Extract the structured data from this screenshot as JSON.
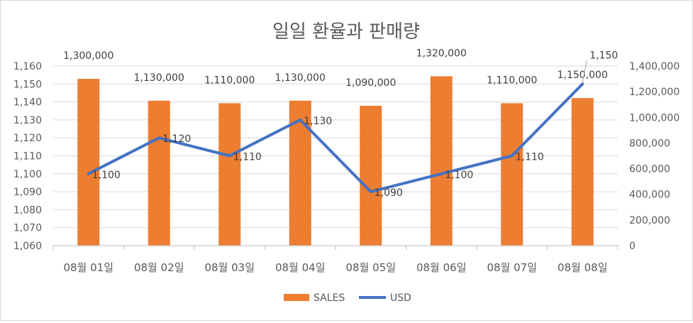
{
  "chart_data": {
    "type": "bar+line",
    "title": "일일 환율과 판매량",
    "categories": [
      "08월 01일",
      "08월 02일",
      "08월 03일",
      "08월 04일",
      "08월 05일",
      "08월 06일",
      "08월 07일",
      "08월 08일"
    ],
    "series": [
      {
        "name": "SALES",
        "type": "bar",
        "axis": "right",
        "color": "#ED7D31",
        "values": [
          1300000,
          1130000,
          1110000,
          1130000,
          1090000,
          1320000,
          1110000,
          1150000
        ],
        "labels": [
          "1,300,000",
          "1,130,000",
          "1,110,000",
          "1,130,000",
          "1,090,000",
          "1,320,000",
          "1,110,000",
          "1,150,000"
        ]
      },
      {
        "name": "USD",
        "type": "line",
        "axis": "left",
        "color": "#4472C4",
        "values": [
          1100,
          1120,
          1110,
          1130,
          1090,
          1100,
          1110,
          1150
        ],
        "labels": [
          "1,100",
          "1,120",
          "1,110",
          "1,130",
          "1,090",
          "1,100",
          "1,110",
          "1,150"
        ]
      }
    ],
    "y_left": {
      "min": 1060,
      "max": 1160,
      "step": 10,
      "tick_labels": [
        "1,060",
        "1,070",
        "1,080",
        "1,090",
        "1,100",
        "1,110",
        "1,120",
        "1,130",
        "1,140",
        "1,150",
        "1,160"
      ]
    },
    "y_right": {
      "min": 0,
      "max": 1400000,
      "step": 200000,
      "tick_labels": [
        "0",
        "200,000",
        "400,000",
        "600,000",
        "800,000",
        "1,000,000",
        "1,200,000",
        "1,400,000"
      ]
    },
    "grid": true,
    "legend_position": "bottom"
  }
}
